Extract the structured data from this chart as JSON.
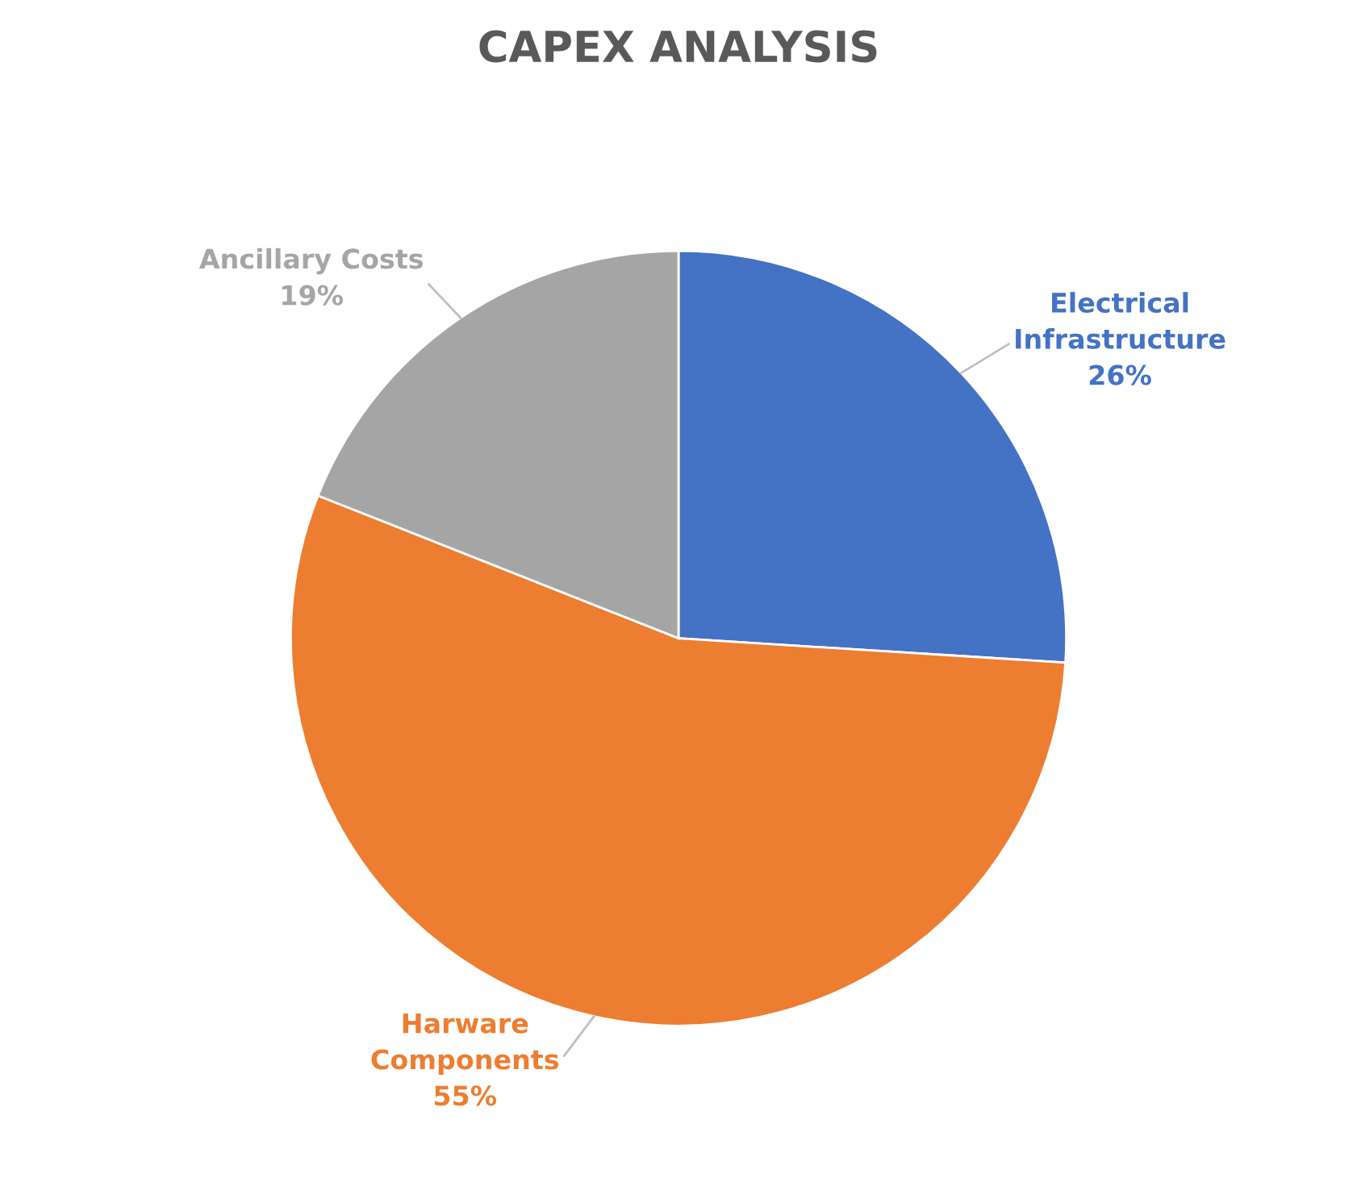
{
  "chart_data": {
    "type": "pie",
    "title": "CAPEX ANALYSIS",
    "categories": [
      "Electrical\nInfrastructure",
      "Harware\nComponents",
      "Ancillary Costs"
    ],
    "values": [
      26,
      55,
      19
    ],
    "value_labels": [
      "26%",
      "55%",
      "19%"
    ],
    "colors": [
      "#4472c4",
      "#ed7d31",
      "#a5a5a5"
    ]
  }
}
